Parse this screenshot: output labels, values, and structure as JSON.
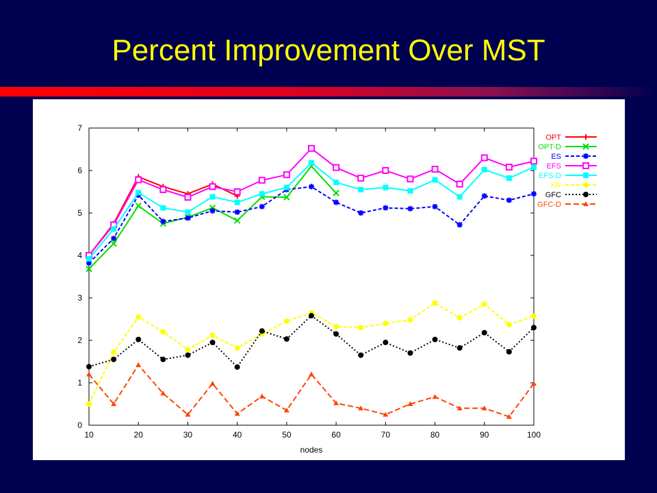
{
  "slide": {
    "title": "Percent Improvement Over MST"
  },
  "colors": {
    "background": "#000050",
    "title": "#ffff00",
    "rule": "#ff0000",
    "panel": "#ffffff"
  },
  "chart_data": {
    "type": "line",
    "title": "",
    "xlabel": "nodes",
    "ylabel": "",
    "xlim": [
      10,
      100
    ],
    "ylim": [
      0,
      7
    ],
    "grid": false,
    "legend_position": "top-right",
    "x_ticks": [
      "10",
      "20",
      "30",
      "40",
      "50",
      "60",
      "70",
      "80",
      "90",
      "100"
    ],
    "y_ticks": [
      "0",
      "1",
      "2",
      "3",
      "4",
      "5",
      "6",
      "7"
    ],
    "x": [
      10,
      15,
      20,
      25,
      30,
      35,
      40,
      45,
      50,
      55,
      60,
      65,
      70,
      75,
      80,
      85,
      90,
      95,
      100
    ],
    "series": [
      {
        "name": "OPT",
        "color": "#ff0000",
        "dash": "solid",
        "marker": "plus",
        "values": [
          4.0,
          4.75,
          5.85,
          5.62,
          5.45,
          5.68,
          5.4,
          null,
          null,
          null,
          null,
          null,
          null,
          null,
          null,
          null,
          null,
          null,
          null
        ]
      },
      {
        "name": "OPT-D",
        "color": "#00dd00",
        "dash": "solid",
        "marker": "cross",
        "values": [
          3.68,
          4.28,
          5.17,
          4.75,
          4.9,
          5.12,
          4.82,
          5.38,
          5.37,
          6.1,
          5.47,
          null,
          null,
          null,
          null,
          null,
          null,
          null,
          null
        ]
      },
      {
        "name": "ES",
        "color": "#0000ff",
        "dash": "dash",
        "marker": "star",
        "values": [
          3.82,
          4.4,
          5.42,
          4.8,
          4.88,
          5.05,
          5.02,
          5.15,
          5.55,
          5.62,
          5.25,
          5.0,
          5.12,
          5.1,
          5.15,
          4.72,
          5.4,
          5.3,
          5.45
        ]
      },
      {
        "name": "EFS",
        "color": "#ff00ff",
        "dash": "solid",
        "marker": "square",
        "values": [
          4.0,
          4.72,
          5.78,
          5.55,
          5.37,
          5.62,
          5.5,
          5.77,
          5.9,
          6.52,
          6.07,
          5.82,
          6.0,
          5.8,
          6.03,
          5.68,
          6.3,
          6.08,
          6.22
        ]
      },
      {
        "name": "EFS-D",
        "color": "#00ffff",
        "dash": "solid",
        "marker": "filled-square",
        "values": [
          3.92,
          4.62,
          5.48,
          5.12,
          5.02,
          5.38,
          5.25,
          5.45,
          5.6,
          6.18,
          5.72,
          5.55,
          5.6,
          5.52,
          5.78,
          5.38,
          6.02,
          5.82,
          6.08
        ]
      },
      {
        "name": "KR",
        "color": "#ffff00",
        "dash": "dash",
        "marker": "circle",
        "values": [
          0.5,
          1.72,
          2.55,
          2.2,
          1.78,
          2.12,
          1.82,
          2.15,
          2.45,
          2.65,
          2.32,
          2.3,
          2.4,
          2.48,
          2.88,
          2.53,
          2.85,
          2.37,
          2.57
        ]
      },
      {
        "name": "GFC",
        "color": "#000000",
        "dash": "dot",
        "marker": "circle",
        "values": [
          1.38,
          1.55,
          2.02,
          1.55,
          1.65,
          1.95,
          1.37,
          2.22,
          2.03,
          2.58,
          2.15,
          1.65,
          1.95,
          1.7,
          2.02,
          1.82,
          2.18,
          1.73,
          2.3
        ]
      },
      {
        "name": "GFC-D",
        "color": "#ff4400",
        "dash": "longdash",
        "marker": "triangle",
        "values": [
          1.2,
          0.5,
          1.42,
          0.75,
          0.25,
          0.98,
          0.27,
          0.68,
          0.35,
          1.2,
          0.52,
          0.4,
          0.25,
          0.5,
          0.67,
          0.4,
          0.4,
          0.2,
          0.98
        ]
      }
    ]
  }
}
